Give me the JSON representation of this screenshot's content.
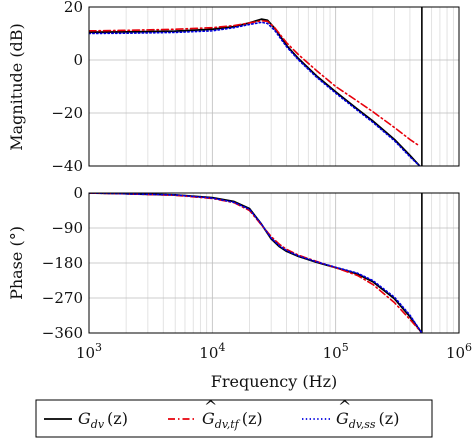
{
  "chart_data": {
    "type": "line",
    "subplots": [
      {
        "id": "magnitude",
        "ylabel": "Magnitude (dB)",
        "ylim": [
          -40,
          20
        ],
        "yticks": [
          20,
          0,
          -20,
          -40
        ],
        "ytick_labels": [
          "20",
          "0",
          "−20",
          "−40"
        ],
        "grid": true
      },
      {
        "id": "phase",
        "ylabel": "Phase (°)",
        "ylim": [
          -360,
          0
        ],
        "yticks": [
          0,
          -90,
          -180,
          -270,
          -360
        ],
        "ytick_labels": [
          "0",
          "−90",
          "−180",
          "−270",
          "−360"
        ],
        "grid": true
      }
    ],
    "x_scale": "log",
    "xlim": [
      1000,
      1000000
    ],
    "xticks": [
      1000,
      10000,
      100000,
      1000000
    ],
    "xtick_labels": [
      {
        "base": "10",
        "exp": "3"
      },
      {
        "base": "10",
        "exp": "4"
      },
      {
        "base": "10",
        "exp": "5"
      },
      {
        "base": "10",
        "exp": "6"
      }
    ],
    "xlabel": "Frequency (Hz)",
    "nyquist_line_hz": 500000,
    "series": [
      {
        "name_base": "G",
        "name_sub": "dv",
        "name_arg": "(z)",
        "hat": false,
        "color": "#000000",
        "dash": "solid",
        "magnitude": {
          "x": [
            1000,
            2000,
            5000,
            10000,
            15000,
            20000,
            25000,
            28000,
            32000,
            40000,
            50000,
            70000,
            100000,
            150000,
            200000,
            300000,
            400000,
            480000
          ],
          "y": [
            10.5,
            10.6,
            10.9,
            11.6,
            12.6,
            14.0,
            15.4,
            15.0,
            12.0,
            5.5,
            0.5,
            -6.0,
            -12.0,
            -18.5,
            -23.0,
            -30.0,
            -36.0,
            -40.0
          ]
        },
        "phase": {
          "x": [
            1000,
            2000,
            5000,
            10000,
            15000,
            20000,
            25000,
            30000,
            35000,
            40000,
            50000,
            70000,
            100000,
            150000,
            200000,
            300000,
            400000,
            500000
          ],
          "y": [
            0,
            -2,
            -5,
            -12,
            -22,
            -40,
            -80,
            -118,
            -138,
            -150,
            -163,
            -178,
            -192,
            -208,
            -228,
            -272,
            -318,
            -360
          ]
        }
      },
      {
        "name_base": "G",
        "name_sub": "dv,tf",
        "name_arg": "(z)",
        "hat": true,
        "color": "#e8000b",
        "dash": "dashdot",
        "magnitude": {
          "x": [
            1000,
            2000,
            5000,
            10000,
            15000,
            20000,
            25000,
            28000,
            32000,
            40000,
            50000,
            70000,
            100000,
            150000,
            200000,
            300000,
            400000,
            480000
          ],
          "y": [
            11.0,
            11.2,
            11.6,
            12.2,
            13.0,
            14.0,
            14.8,
            14.6,
            12.2,
            6.5,
            2.0,
            -4.0,
            -10.0,
            -15.5,
            -19.5,
            -25.5,
            -30.0,
            -32.5
          ]
        },
        "phase": {
          "x": [
            1000,
            2000,
            5000,
            10000,
            15000,
            20000,
            25000,
            30000,
            35000,
            40000,
            50000,
            70000,
            100000,
            150000,
            200000,
            300000,
            400000,
            500000
          ],
          "y": [
            0,
            -2,
            -6,
            -14,
            -25,
            -45,
            -82,
            -112,
            -132,
            -145,
            -160,
            -176,
            -192,
            -212,
            -235,
            -282,
            -325,
            -360
          ]
        }
      },
      {
        "name_base": "G",
        "name_sub": "dv,ss",
        "name_arg": "(z)",
        "hat": true,
        "color": "#0000e0",
        "dash": "dotted",
        "magnitude": {
          "x": [
            1000,
            2000,
            5000,
            10000,
            15000,
            20000,
            25000,
            28000,
            32000,
            40000,
            50000,
            70000,
            100000,
            150000,
            200000,
            300000,
            400000,
            480000
          ],
          "y": [
            10.0,
            10.1,
            10.4,
            11.0,
            12.2,
            13.4,
            14.2,
            13.8,
            11.2,
            5.0,
            0.0,
            -6.5,
            -12.5,
            -19.0,
            -23.5,
            -30.5,
            -36.5,
            -40.0
          ]
        },
        "phase": {
          "x": [
            1000,
            2000,
            5000,
            10000,
            15000,
            20000,
            25000,
            30000,
            35000,
            40000,
            50000,
            70000,
            100000,
            150000,
            200000,
            300000,
            400000,
            500000
          ],
          "y": [
            0,
            -2,
            -5,
            -13,
            -24,
            -42,
            -80,
            -116,
            -136,
            -148,
            -162,
            -177,
            -191,
            -206,
            -225,
            -268,
            -314,
            -360
          ]
        }
      }
    ]
  }
}
